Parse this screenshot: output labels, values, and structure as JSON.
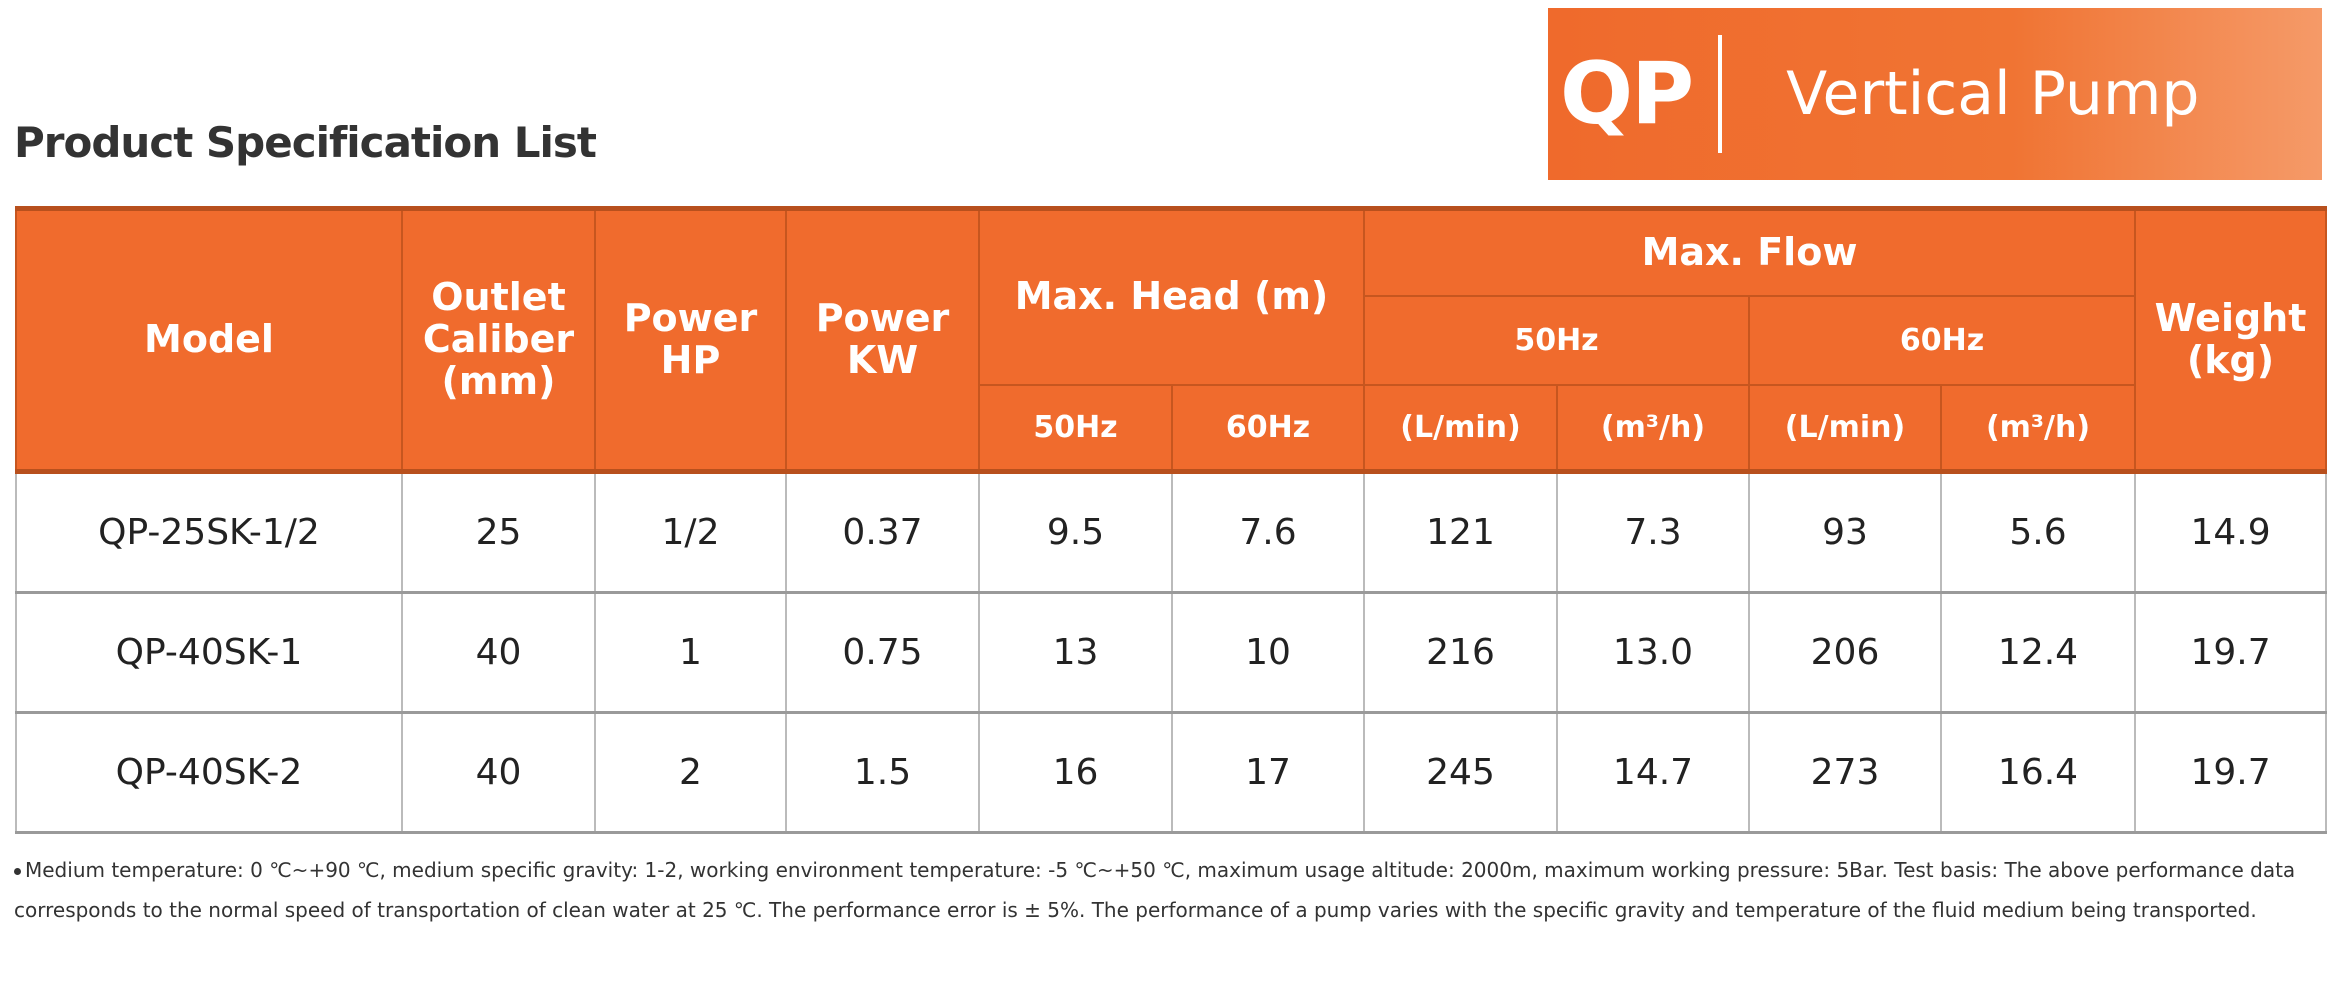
{
  "banner": {
    "code": "QP",
    "name": "Vertical Pump"
  },
  "title": "Product Specification List",
  "table": {
    "headers": {
      "model": "Model",
      "outlet_caliber": [
        "Outlet",
        "Caliber",
        "(mm)"
      ],
      "power_hp": [
        "Power",
        "HP"
      ],
      "power_kw": [
        "Power",
        "KW"
      ],
      "max_head": "Max. Head (m)",
      "max_head_50": "50Hz",
      "max_head_60": "60Hz",
      "max_flow": "Max. Flow",
      "flow_50": "50Hz",
      "flow_60": "60Hz",
      "lmin_50": "(L/min)",
      "m3h_50": "(m³/h)",
      "lmin_60": "(L/min)",
      "m3h_60": "(m³/h)",
      "weight": [
        "Weight",
        "(kg)"
      ]
    },
    "rows": [
      [
        "QP-25SK-1/2",
        "25",
        "1/2",
        "0.37",
        "9.5",
        "7.6",
        "121",
        "7.3",
        "93",
        "5.6",
        "14.9"
      ],
      [
        "QP-40SK-1",
        "40",
        "1",
        "0.75",
        "13",
        "10",
        "216",
        "13.0",
        "206",
        "12.4",
        "19.7"
      ],
      [
        "QP-40SK-2",
        "40",
        "2",
        "1.5",
        "16",
        "17",
        "245",
        "14.7",
        "273",
        "16.4",
        "19.7"
      ]
    ]
  },
  "note": "Medium temperature: 0 ℃~+90 ℃, medium specific gravity: 1-2, working environment temperature: -5 ℃~+50 ℃, maximum usage altitude: 2000m, maximum working pressure: 5Bar. Test basis: The above performance data corresponds to the normal speed of transportation of clean water at 25 ℃. The performance error is ± 5%. The performance of a pump varies with the specific gravity and temperature of the fluid medium being transported."
}
